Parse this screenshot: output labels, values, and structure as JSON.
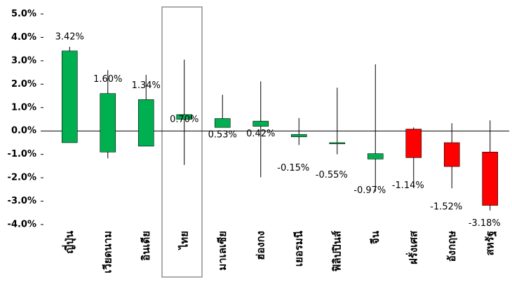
{
  "chart_data": {
    "type": "candlestick",
    "categories": [
      "ญี่ปุ่น",
      "เวียดนาม",
      "อินเดีย",
      "ไทย",
      "มาเลเซีย",
      "ฮ่องกง",
      "เยอรมนี",
      "ฟิลิปปินส์",
      "จีน",
      "ฝรั่งเศส",
      "อังกฤษ",
      "สหรัฐ"
    ],
    "values": [
      3.42,
      1.6,
      1.34,
      0.7,
      0.53,
      0.42,
      -0.15,
      -0.55,
      -0.97,
      -1.14,
      -1.52,
      -3.18
    ],
    "value_labels": [
      "3.42%",
      "1.60%",
      "1.34%",
      "0.70%",
      "0.53%",
      "0.42%",
      "-0.15%",
      "-0.55%",
      "-0.97%",
      "-1.14%",
      "-1.52%",
      "-3.18%"
    ],
    "open": [
      -0.5,
      -0.9,
      -0.65,
      0.5,
      0.15,
      0.2,
      -0.25,
      -0.5,
      -1.2,
      0.08,
      -0.5,
      -0.9
    ],
    "high": [
      3.6,
      2.6,
      2.4,
      3.05,
      1.55,
      2.12,
      0.55,
      1.85,
      2.85,
      0.15,
      0.33,
      0.45
    ],
    "low": [
      -0.5,
      -1.17,
      -0.65,
      -1.45,
      0.15,
      -1.98,
      -0.6,
      -1.0,
      -2.6,
      -2.35,
      -2.45,
      -3.4
    ],
    "colors": [
      "#00b050",
      "#00b050",
      "#00b050",
      "#00b050",
      "#00b050",
      "#00b050",
      "#00b050",
      "#00b050",
      "#00b050",
      "#ff0000",
      "#ff0000",
      "#ff0000"
    ],
    "ylim": [
      -4,
      5
    ],
    "yticks": [
      {
        "value": -4,
        "label": "-4.0%"
      },
      {
        "value": -3,
        "label": "-3.0%"
      },
      {
        "value": -2,
        "label": "-2.0%"
      },
      {
        "value": -1,
        "label": "-1.0%"
      },
      {
        "value": 0,
        "label": "0.0%"
      },
      {
        "value": 1,
        "label": "1.0%"
      },
      {
        "value": 2,
        "label": "2.0%"
      },
      {
        "value": 3,
        "label": "3.0%"
      },
      {
        "value": 4,
        "label": "4.0%"
      },
      {
        "value": 5,
        "label": "5.0%"
      }
    ]
  }
}
